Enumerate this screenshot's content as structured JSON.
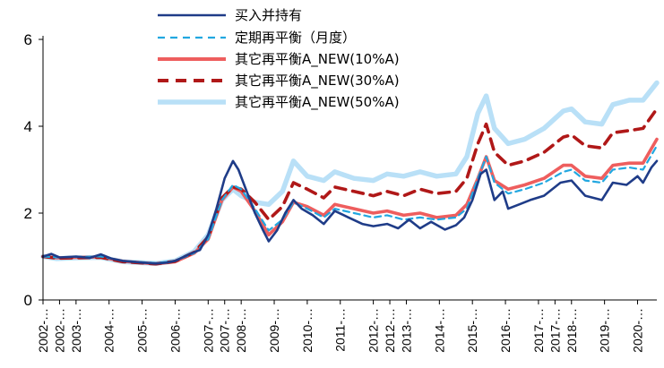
{
  "chart_data": {
    "type": "line",
    "xlabel": "",
    "ylabel": "",
    "ylim": [
      0,
      6
    ],
    "yticks": [
      0,
      2,
      4,
      6
    ],
    "grid": false,
    "legend_position": "top-center",
    "x_tick_labels": [
      "2002-…",
      "2002-…",
      "2003-…",
      "2004-…",
      "2005-…",
      "2006-…",
      "2007-…",
      "2007-…",
      "2008-…",
      "2009-…",
      "2010-…",
      "2011-…",
      "2012-…",
      "2012-…",
      "2013-…",
      "2014-…",
      "2015-…",
      "2016-…",
      "2017-…",
      "2017-…",
      "2018-…",
      "2019-…",
      "2020-…"
    ],
    "x_dates": [
      "2002-01",
      "2002-07",
      "2003-01",
      "2004-01",
      "2005-01",
      "2006-01",
      "2007-01",
      "2007-07",
      "2008-01",
      "2009-01",
      "2010-01",
      "2011-01",
      "2012-01",
      "2012-07",
      "2013-01",
      "2014-01",
      "2015-01",
      "2016-01",
      "2017-01",
      "2017-07",
      "2018-01",
      "2019-01",
      "2020-01"
    ],
    "x_range": [
      "2002-01",
      "2020-08"
    ],
    "series": [
      {
        "name": "买入并持有",
        "color": "#1f3c88",
        "style": "solid",
        "points": [
          [
            "2002-01",
            1.0
          ],
          [
            "2002-04",
            1.06
          ],
          [
            "2002-07",
            0.98
          ],
          [
            "2003-01",
            1.0
          ],
          [
            "2003-06",
            0.97
          ],
          [
            "2003-10",
            1.05
          ],
          [
            "2004-02",
            0.95
          ],
          [
            "2004-06",
            0.9
          ],
          [
            "2005-01",
            0.86
          ],
          [
            "2005-06",
            0.84
          ],
          [
            "2005-10",
            0.86
          ],
          [
            "2006-01",
            0.9
          ],
          [
            "2006-06",
            1.05
          ],
          [
            "2006-10",
            1.15
          ],
          [
            "2007-01",
            1.5
          ],
          [
            "2007-04",
            2.1
          ],
          [
            "2007-07",
            2.8
          ],
          [
            "2007-10",
            3.2
          ],
          [
            "2007-12",
            3.0
          ],
          [
            "2008-03",
            2.5
          ],
          [
            "2008-06",
            2.0
          ],
          [
            "2008-09",
            1.6
          ],
          [
            "2008-11",
            1.35
          ],
          [
            "2009-02",
            1.6
          ],
          [
            "2009-05",
            2.0
          ],
          [
            "2009-08",
            2.3
          ],
          [
            "2009-11",
            2.1
          ],
          [
            "2010-03",
            1.95
          ],
          [
            "2010-07",
            1.75
          ],
          [
            "2010-11",
            2.05
          ],
          [
            "2011-04",
            1.9
          ],
          [
            "2011-09",
            1.75
          ],
          [
            "2012-01",
            1.7
          ],
          [
            "2012-06",
            1.75
          ],
          [
            "2012-10",
            1.65
          ],
          [
            "2013-02",
            1.85
          ],
          [
            "2013-06",
            1.65
          ],
          [
            "2013-10",
            1.8
          ],
          [
            "2014-03",
            1.62
          ],
          [
            "2014-07",
            1.72
          ],
          [
            "2014-10",
            1.9
          ],
          [
            "2015-01",
            2.3
          ],
          [
            "2015-04",
            2.9
          ],
          [
            "2015-06",
            3.0
          ],
          [
            "2015-09",
            2.3
          ],
          [
            "2015-12",
            2.5
          ],
          [
            "2016-02",
            2.1
          ],
          [
            "2016-06",
            2.2
          ],
          [
            "2016-10",
            2.3
          ],
          [
            "2017-03",
            2.4
          ],
          [
            "2017-09",
            2.7
          ],
          [
            "2018-01",
            2.75
          ],
          [
            "2018-06",
            2.4
          ],
          [
            "2018-12",
            2.3
          ],
          [
            "2019-04",
            2.7
          ],
          [
            "2019-09",
            2.65
          ],
          [
            "2020-01",
            2.85
          ],
          [
            "2020-03",
            2.7
          ],
          [
            "2020-06",
            3.05
          ],
          [
            "2020-08",
            3.2
          ]
        ]
      },
      {
        "name": "定期再平衡（月度）",
        "color": "#22a7e0",
        "style": "dashed",
        "points": [
          [
            "2002-01",
            1.0
          ],
          [
            "2002-06",
            0.98
          ],
          [
            "2003-01",
            0.99
          ],
          [
            "2003-10",
            1.0
          ],
          [
            "2004-06",
            0.9
          ],
          [
            "2005-06",
            0.85
          ],
          [
            "2006-01",
            0.9
          ],
          [
            "2006-08",
            1.08
          ],
          [
            "2007-01",
            1.4
          ],
          [
            "2007-06",
            2.3
          ],
          [
            "2007-10",
            2.65
          ],
          [
            "2008-01",
            2.55
          ],
          [
            "2008-06",
            2.1
          ],
          [
            "2008-11",
            1.6
          ],
          [
            "2009-04",
            1.85
          ],
          [
            "2009-08",
            2.25
          ],
          [
            "2010-01",
            2.1
          ],
          [
            "2010-07",
            1.9
          ],
          [
            "2010-11",
            2.1
          ],
          [
            "2011-06",
            2.0
          ],
          [
            "2012-01",
            1.9
          ],
          [
            "2012-06",
            1.95
          ],
          [
            "2012-12",
            1.85
          ],
          [
            "2013-06",
            1.9
          ],
          [
            "2013-12",
            1.85
          ],
          [
            "2014-07",
            1.9
          ],
          [
            "2014-11",
            2.1
          ],
          [
            "2015-03",
            2.8
          ],
          [
            "2015-06",
            3.3
          ],
          [
            "2015-09",
            2.7
          ],
          [
            "2016-02",
            2.45
          ],
          [
            "2016-08",
            2.55
          ],
          [
            "2017-03",
            2.7
          ],
          [
            "2017-10",
            2.95
          ],
          [
            "2018-01",
            3.0
          ],
          [
            "2018-06",
            2.75
          ],
          [
            "2018-12",
            2.7
          ],
          [
            "2019-04",
            3.0
          ],
          [
            "2019-10",
            3.05
          ],
          [
            "2020-03",
            3.0
          ],
          [
            "2020-08",
            3.55
          ]
        ]
      },
      {
        "name": "其它再平衡A_NEW(10%A)",
        "color": "#ee5e5e",
        "style": "solid",
        "points": [
          [
            "2002-01",
            1.0
          ],
          [
            "2002-06",
            0.97
          ],
          [
            "2003-01",
            0.98
          ],
          [
            "2003-10",
            0.99
          ],
          [
            "2004-06",
            0.89
          ],
          [
            "2005-06",
            0.83
          ],
          [
            "2006-01",
            0.88
          ],
          [
            "2006-08",
            1.08
          ],
          [
            "2007-01",
            1.4
          ],
          [
            "2007-06",
            2.3
          ],
          [
            "2007-10",
            2.6
          ],
          [
            "2008-01",
            2.5
          ],
          [
            "2008-06",
            2.05
          ],
          [
            "2008-11",
            1.5
          ],
          [
            "2009-04",
            1.8
          ],
          [
            "2009-08",
            2.25
          ],
          [
            "2010-01",
            2.15
          ],
          [
            "2010-07",
            1.95
          ],
          [
            "2010-11",
            2.2
          ],
          [
            "2011-06",
            2.1
          ],
          [
            "2012-01",
            2.0
          ],
          [
            "2012-06",
            2.05
          ],
          [
            "2012-12",
            1.95
          ],
          [
            "2013-06",
            2.0
          ],
          [
            "2013-12",
            1.9
          ],
          [
            "2014-07",
            1.95
          ],
          [
            "2014-11",
            2.2
          ],
          [
            "2015-03",
            2.8
          ],
          [
            "2015-06",
            3.3
          ],
          [
            "2015-09",
            2.75
          ],
          [
            "2016-02",
            2.55
          ],
          [
            "2016-08",
            2.65
          ],
          [
            "2017-03",
            2.8
          ],
          [
            "2017-10",
            3.1
          ],
          [
            "2018-01",
            3.1
          ],
          [
            "2018-06",
            2.85
          ],
          [
            "2018-12",
            2.8
          ],
          [
            "2019-04",
            3.1
          ],
          [
            "2019-10",
            3.15
          ],
          [
            "2020-03",
            3.15
          ],
          [
            "2020-08",
            3.7
          ]
        ]
      },
      {
        "name": "其它再平衡A_NEW(30%A)",
        "color": "#b01818",
        "style": "dashed",
        "points": [
          [
            "2002-01",
            1.0
          ],
          [
            "2002-06",
            0.96
          ],
          [
            "2003-01",
            0.97
          ],
          [
            "2003-10",
            0.98
          ],
          [
            "2004-06",
            0.88
          ],
          [
            "2005-06",
            0.83
          ],
          [
            "2006-01",
            0.89
          ],
          [
            "2006-08",
            1.1
          ],
          [
            "2007-01",
            1.45
          ],
          [
            "2007-06",
            2.35
          ],
          [
            "2007-10",
            2.6
          ],
          [
            "2008-01",
            2.55
          ],
          [
            "2008-06",
            2.25
          ],
          [
            "2008-11",
            1.85
          ],
          [
            "2009-04",
            2.15
          ],
          [
            "2009-08",
            2.7
          ],
          [
            "2010-01",
            2.55
          ],
          [
            "2010-07",
            2.35
          ],
          [
            "2010-11",
            2.6
          ],
          [
            "2011-06",
            2.5
          ],
          [
            "2012-01",
            2.4
          ],
          [
            "2012-06",
            2.5
          ],
          [
            "2012-12",
            2.4
          ],
          [
            "2013-06",
            2.55
          ],
          [
            "2013-12",
            2.45
          ],
          [
            "2014-07",
            2.5
          ],
          [
            "2014-11",
            2.8
          ],
          [
            "2015-03",
            3.6
          ],
          [
            "2015-06",
            4.05
          ],
          [
            "2015-09",
            3.4
          ],
          [
            "2016-02",
            3.1
          ],
          [
            "2016-08",
            3.2
          ],
          [
            "2017-03",
            3.4
          ],
          [
            "2017-10",
            3.75
          ],
          [
            "2018-01",
            3.8
          ],
          [
            "2018-06",
            3.55
          ],
          [
            "2018-12",
            3.5
          ],
          [
            "2019-04",
            3.85
          ],
          [
            "2019-10",
            3.9
          ],
          [
            "2020-03",
            3.95
          ],
          [
            "2020-08",
            4.4
          ]
        ]
      },
      {
        "name": "其它再平衡A_NEW(50%A)",
        "color": "#b9e0f7",
        "style": "solid",
        "points": [
          [
            "2002-01",
            1.0
          ],
          [
            "2002-06",
            0.95
          ],
          [
            "2003-01",
            0.97
          ],
          [
            "2003-10",
            0.98
          ],
          [
            "2004-06",
            0.88
          ],
          [
            "2005-06",
            0.84
          ],
          [
            "2006-01",
            0.9
          ],
          [
            "2006-08",
            1.12
          ],
          [
            "2007-01",
            1.5
          ],
          [
            "2007-06",
            2.3
          ],
          [
            "2007-10",
            2.55
          ],
          [
            "2008-01",
            2.4
          ],
          [
            "2008-06",
            2.25
          ],
          [
            "2008-11",
            2.2
          ],
          [
            "2009-04",
            2.5
          ],
          [
            "2009-08",
            3.2
          ],
          [
            "2010-01",
            2.85
          ],
          [
            "2010-07",
            2.75
          ],
          [
            "2010-11",
            2.95
          ],
          [
            "2011-06",
            2.8
          ],
          [
            "2012-01",
            2.75
          ],
          [
            "2012-06",
            2.9
          ],
          [
            "2012-12",
            2.85
          ],
          [
            "2013-06",
            2.95
          ],
          [
            "2013-12",
            2.85
          ],
          [
            "2014-07",
            2.9
          ],
          [
            "2014-11",
            3.3
          ],
          [
            "2015-03",
            4.3
          ],
          [
            "2015-06",
            4.7
          ],
          [
            "2015-09",
            3.95
          ],
          [
            "2016-02",
            3.6
          ],
          [
            "2016-08",
            3.7
          ],
          [
            "2017-03",
            3.95
          ],
          [
            "2017-10",
            4.35
          ],
          [
            "2018-01",
            4.4
          ],
          [
            "2018-06",
            4.1
          ],
          [
            "2018-12",
            4.05
          ],
          [
            "2019-04",
            4.5
          ],
          [
            "2019-10",
            4.6
          ],
          [
            "2020-03",
            4.6
          ],
          [
            "2020-08",
            5.0
          ]
        ]
      }
    ]
  }
}
